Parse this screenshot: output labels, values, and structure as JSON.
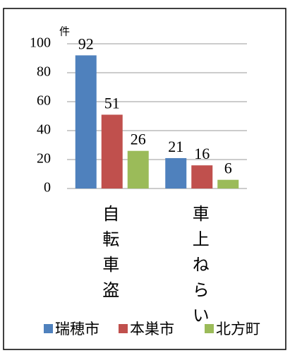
{
  "chart_data": {
    "type": "bar",
    "y_unit": "件",
    "categories": [
      "自転車盗",
      "車上ねらい"
    ],
    "series": [
      {
        "name": "瑞穂市",
        "color": "#4f81bd",
        "values": [
          92,
          21
        ]
      },
      {
        "name": "本巣市",
        "color": "#c0504d",
        "values": [
          51,
          16
        ]
      },
      {
        "name": "北方町",
        "color": "#9bbb59",
        "values": [
          26,
          6
        ]
      }
    ],
    "ylim": [
      0,
      100
    ],
    "yticks": [
      0,
      20,
      40,
      60,
      80,
      100
    ],
    "grid": true
  }
}
